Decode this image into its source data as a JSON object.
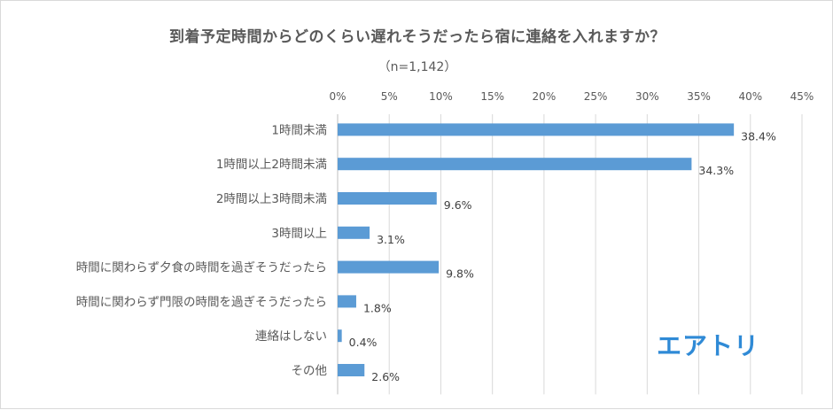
{
  "chart_data": {
    "type": "bar",
    "orientation": "horizontal",
    "title": "到着予定時間からどのくらい遅れそうだったら宿に連絡を入れますか？",
    "subtitle": "（n=1,142）",
    "categories": [
      "1時間未満",
      "1時間以上2時間未満",
      "2時間以上3時間未満",
      "3時間以上",
      "時間に関わらず夕食の時間を過ぎそうだったら",
      "時間に関わらず門限の時間を過ぎそうだったら",
      "連絡はしない",
      "その他"
    ],
    "values": [
      38.4,
      34.3,
      9.6,
      3.1,
      9.8,
      1.8,
      0.4,
      2.6
    ],
    "value_labels": [
      "38.4%",
      "34.3%",
      "9.6%",
      "3.1%",
      "9.8%",
      "1.8%",
      "0.4%",
      "2.6%"
    ],
    "xlim": [
      0,
      45
    ],
    "xticks": [
      0,
      5,
      10,
      15,
      20,
      25,
      30,
      35,
      40,
      45
    ],
    "xtick_labels": [
      "0%",
      "5%",
      "10%",
      "15%",
      "20%",
      "25%",
      "30%",
      "35%",
      "40%",
      "45%"
    ],
    "axis_position": "top",
    "grid": true,
    "bar_color": "#5b9bd5"
  },
  "brand": {
    "logo_text": "エアトリ",
    "color": "#2f8ad6"
  }
}
